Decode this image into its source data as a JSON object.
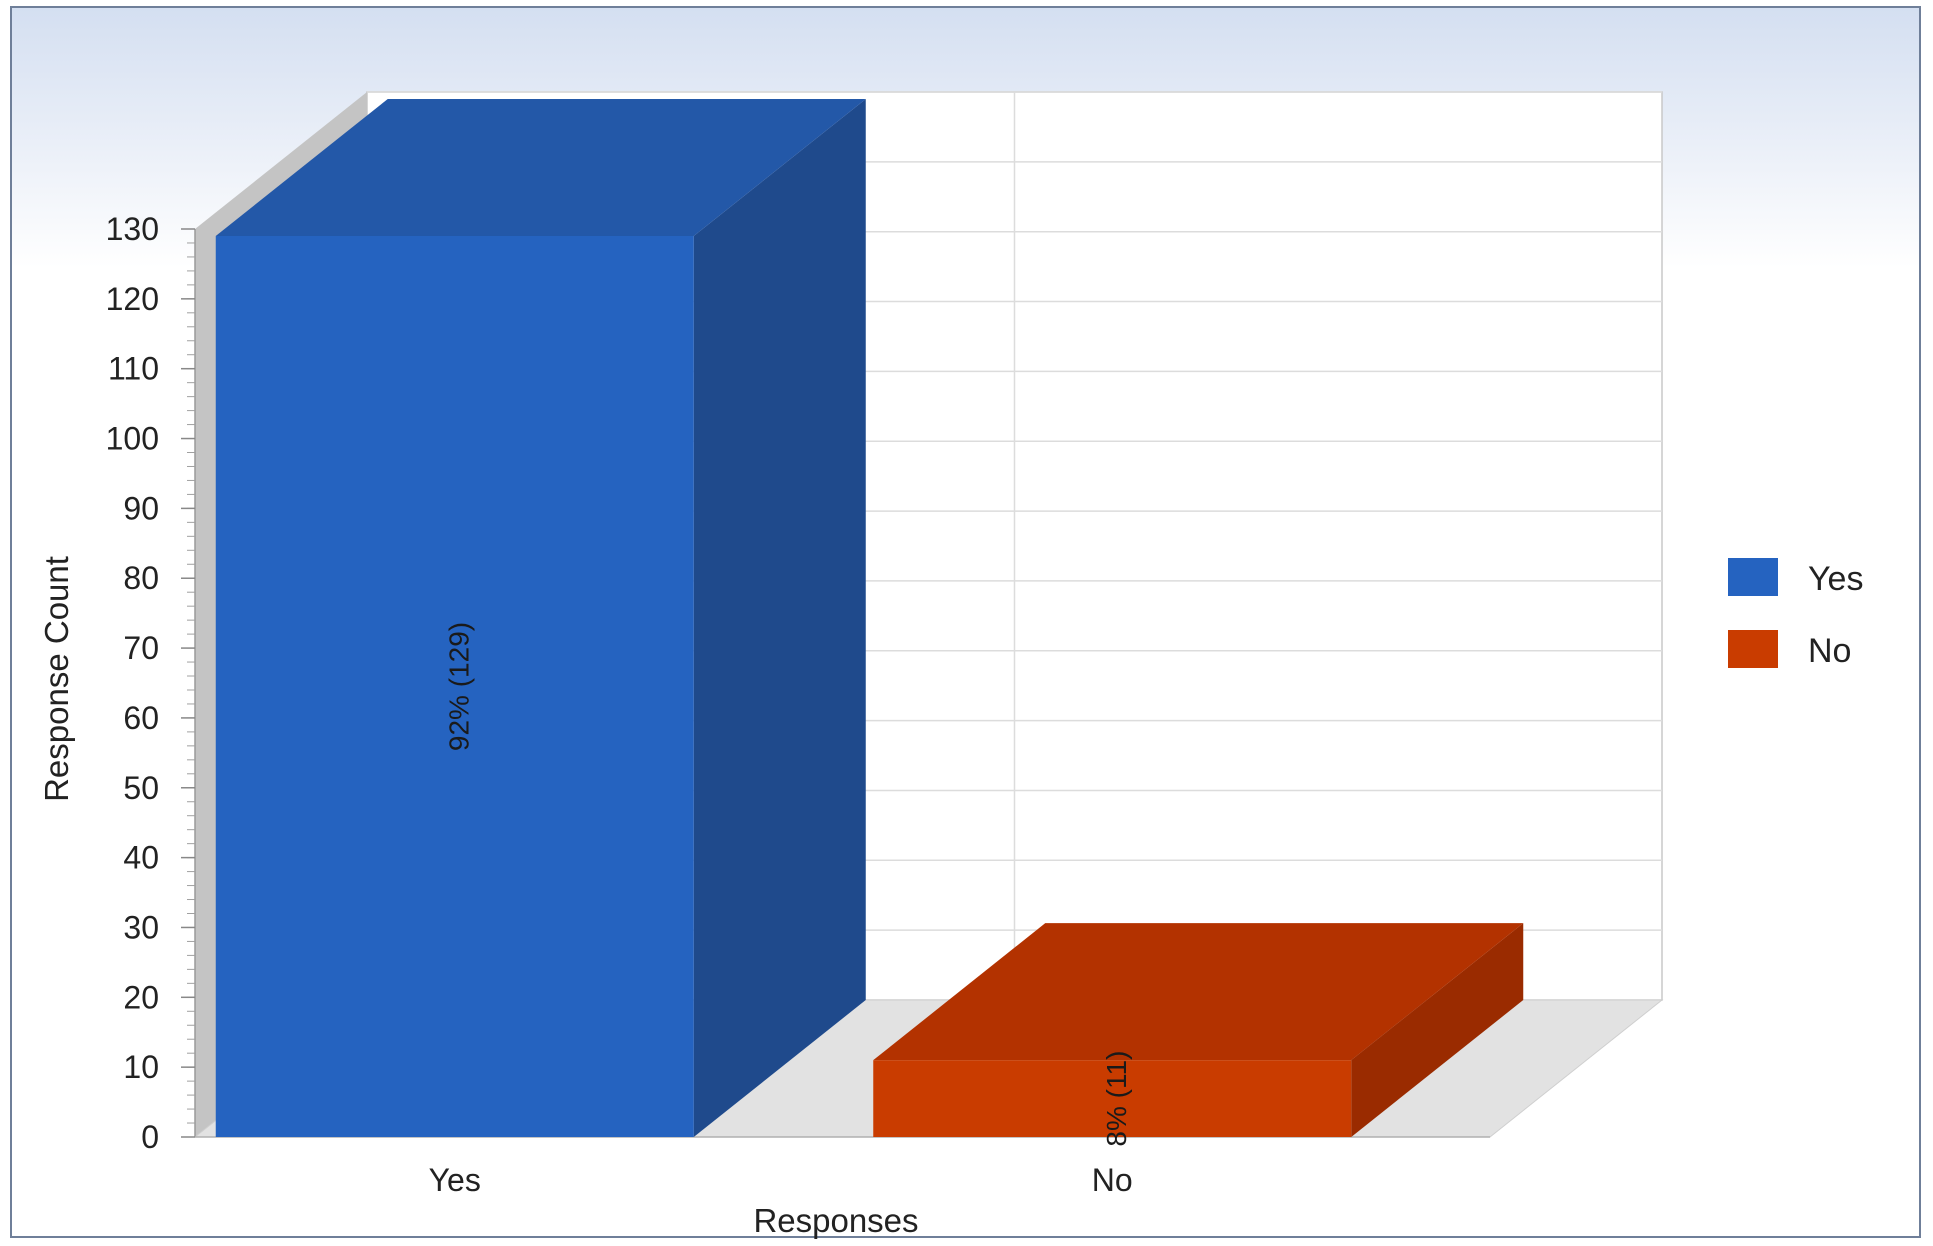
{
  "chart_data": {
    "type": "bar",
    "title": "",
    "xlabel": "Responses",
    "ylabel": "Response Count",
    "categories": [
      "Yes",
      "No"
    ],
    "values": [
      129,
      11
    ],
    "data_labels": [
      "92% (129)",
      "8% (11)"
    ],
    "ylim": [
      0,
      130
    ],
    "yticks": [
      0,
      10,
      20,
      30,
      40,
      50,
      60,
      70,
      80,
      90,
      100,
      110,
      120,
      130
    ],
    "grid": true,
    "style": "3d",
    "legend": {
      "placement": "right",
      "entries": [
        {
          "label": "Yes",
          "color": "#2563c0"
        },
        {
          "label": "No",
          "color": "#c93c00"
        }
      ]
    },
    "colors": {
      "Yes": {
        "front": "#2563c0",
        "top": "#2358a8",
        "side": "#1f4a8c"
      },
      "No": {
        "front": "#c93c00",
        "top": "#b33200",
        "side": "#9a2b00"
      }
    }
  }
}
